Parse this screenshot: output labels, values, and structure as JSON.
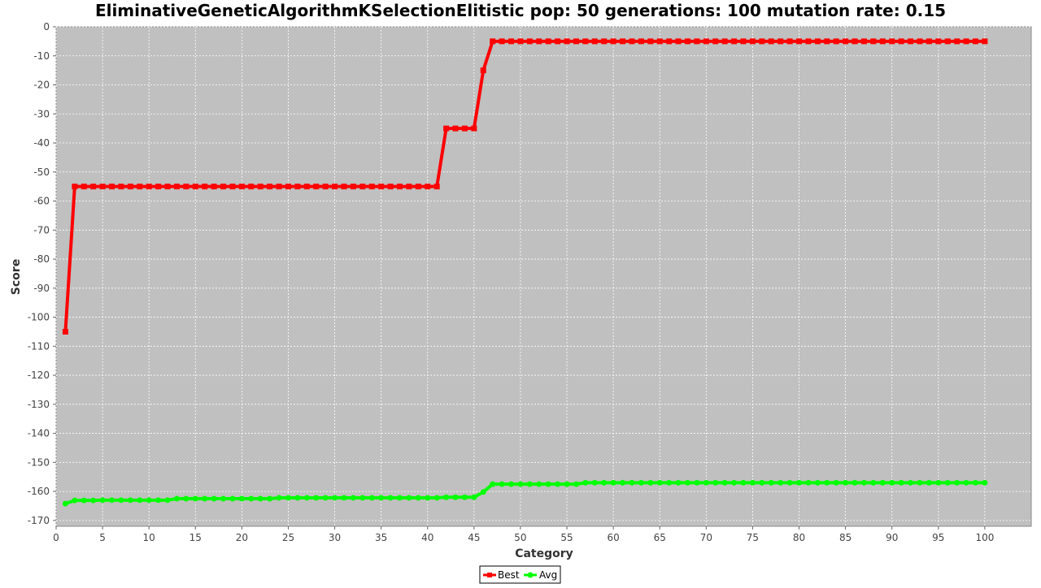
{
  "chart_data": {
    "type": "line",
    "title": "EliminativeGeneticAlgorithmKSelectionElitistic pop: 50 generations: 100 mutation rate: 0.15",
    "xlabel": "Category",
    "ylabel": "Score",
    "xlim": [
      0,
      105
    ],
    "ylim": [
      -172,
      0
    ],
    "x_ticks": [
      0,
      5,
      10,
      15,
      20,
      25,
      30,
      35,
      40,
      45,
      50,
      55,
      60,
      65,
      70,
      75,
      80,
      85,
      90,
      95,
      100
    ],
    "y_ticks": [
      0,
      -10,
      -20,
      -30,
      -40,
      -50,
      -60,
      -70,
      -80,
      -90,
      -100,
      -110,
      -120,
      -130,
      -140,
      -150,
      -160,
      -170
    ],
    "grid": true,
    "legend_position": "bottom-center",
    "x": [
      1,
      2,
      3,
      4,
      5,
      6,
      7,
      8,
      9,
      10,
      11,
      12,
      13,
      14,
      15,
      16,
      17,
      18,
      19,
      20,
      21,
      22,
      23,
      24,
      25,
      26,
      27,
      28,
      29,
      30,
      31,
      32,
      33,
      34,
      35,
      36,
      37,
      38,
      39,
      40,
      41,
      42,
      43,
      44,
      45,
      46,
      47,
      48,
      49,
      50,
      51,
      52,
      53,
      54,
      55,
      56,
      57,
      58,
      59,
      60,
      61,
      62,
      63,
      64,
      65,
      66,
      67,
      68,
      69,
      70,
      71,
      72,
      73,
      74,
      75,
      76,
      77,
      78,
      79,
      80,
      81,
      82,
      83,
      84,
      85,
      86,
      87,
      88,
      89,
      90,
      91,
      92,
      93,
      94,
      95,
      96,
      97,
      98,
      99,
      100
    ],
    "series": [
      {
        "name": "Best",
        "color": "#ff0000",
        "marker": "square",
        "values": [
          -105,
          -55,
          -55,
          -55,
          -55,
          -55,
          -55,
          -55,
          -55,
          -55,
          -55,
          -55,
          -55,
          -55,
          -55,
          -55,
          -55,
          -55,
          -55,
          -55,
          -55,
          -55,
          -55,
          -55,
          -55,
          -55,
          -55,
          -55,
          -55,
          -55,
          -55,
          -55,
          -55,
          -55,
          -55,
          -55,
          -55,
          -55,
          -55,
          -55,
          -55,
          -35,
          -35,
          -35,
          -35,
          -15,
          -5,
          -5,
          -5,
          -5,
          -5,
          -5,
          -5,
          -5,
          -5,
          -5,
          -5,
          -5,
          -5,
          -5,
          -5,
          -5,
          -5,
          -5,
          -5,
          -5,
          -5,
          -5,
          -5,
          -5,
          -5,
          -5,
          -5,
          -5,
          -5,
          -5,
          -5,
          -5,
          -5,
          -5,
          -5,
          -5,
          -5,
          -5,
          -5,
          -5,
          -5,
          -5,
          -5,
          -5,
          -5,
          -5,
          -5,
          -5,
          -5,
          -5,
          -5,
          -5,
          -5,
          -5
        ]
      },
      {
        "name": "Avg",
        "color": "#00ff00",
        "marker": "circle",
        "values": [
          -164.2,
          -163.1,
          -163.1,
          -163.1,
          -163.0,
          -163.0,
          -163.0,
          -163.0,
          -163.0,
          -163.0,
          -163.0,
          -163.0,
          -162.5,
          -162.5,
          -162.5,
          -162.5,
          -162.5,
          -162.5,
          -162.5,
          -162.5,
          -162.5,
          -162.5,
          -162.5,
          -162.2,
          -162.2,
          -162.2,
          -162.2,
          -162.2,
          -162.2,
          -162.2,
          -162.2,
          -162.2,
          -162.2,
          -162.2,
          -162.2,
          -162.2,
          -162.2,
          -162.2,
          -162.2,
          -162.2,
          -162.2,
          -162.0,
          -162.0,
          -162.0,
          -162.0,
          -160.2,
          -157.5,
          -157.5,
          -157.5,
          -157.5,
          -157.5,
          -157.5,
          -157.5,
          -157.5,
          -157.5,
          -157.5,
          -157.0,
          -157.0,
          -157.0,
          -157.0,
          -157.0,
          -157.0,
          -157.0,
          -157.0,
          -157.0,
          -157.0,
          -157.0,
          -157.0,
          -157.0,
          -157.0,
          -157.0,
          -157.0,
          -157.0,
          -157.0,
          -157.0,
          -157.0,
          -157.0,
          -157.0,
          -157.0,
          -157.0,
          -157.0,
          -157.0,
          -157.0,
          -157.0,
          -157.0,
          -157.0,
          -157.0,
          -157.0,
          -157.0,
          -157.0,
          -157.0,
          -157.0,
          -157.0,
          -157.0,
          -157.0,
          -157.0,
          -157.0,
          -157.0,
          -157.0,
          -157.0
        ]
      }
    ],
    "plot_background": "#c0c0c0"
  }
}
